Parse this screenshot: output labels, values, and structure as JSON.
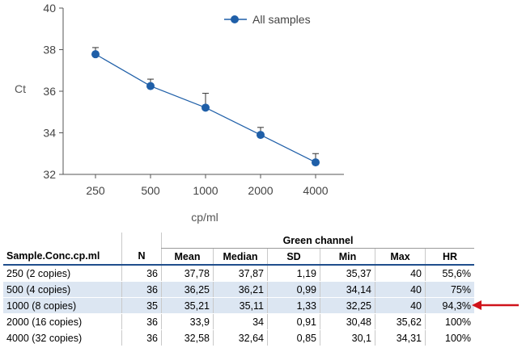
{
  "chart_data": {
    "type": "line",
    "categories": [
      "250",
      "500",
      "1000",
      "2000",
      "4000"
    ],
    "series": [
      {
        "name": "All samples",
        "values": [
          37.78,
          36.25,
          35.21,
          33.9,
          32.58
        ],
        "error_upper": [
          38.1,
          36.58,
          35.9,
          34.26,
          33.0
        ]
      }
    ],
    "xlabel": "cp/ml",
    "ylabel": "Ct",
    "ylim": [
      32,
      40
    ],
    "yticks": [
      "32",
      "34",
      "36",
      "38",
      "40"
    ],
    "grid": false,
    "legend": "top-right",
    "color": "#1f5fa8"
  },
  "table": {
    "group_header": "Green channel",
    "headers": [
      "Sample.Conc.cp.ml",
      "N",
      "Mean",
      "Median",
      "SD",
      "Min",
      "Max",
      "HR"
    ],
    "rows": [
      [
        "250 (2 copies)",
        "36",
        "37,78",
        "37,87",
        "1,19",
        "35,37",
        "40",
        "55,6%"
      ],
      [
        "500 (4 copies)",
        "36",
        "36,25",
        "36,21",
        "0,99",
        "34,14",
        "40",
        "75%"
      ],
      [
        "1000 (8 copies)",
        "35",
        "35,21",
        "35,11",
        "1,33",
        "32,25",
        "40",
        "94,3%"
      ],
      [
        "2000 (16 copies)",
        "36",
        "33,9",
        "34",
        "0,91",
        "30,48",
        "35,62",
        "100%"
      ],
      [
        "4000 (32 copies)",
        "36",
        "32,58",
        "32,64",
        "0,85",
        "30,1",
        "34,31",
        "100%"
      ]
    ],
    "highlight_color": "#dce6f2",
    "arrow_color": "#d0131b"
  }
}
